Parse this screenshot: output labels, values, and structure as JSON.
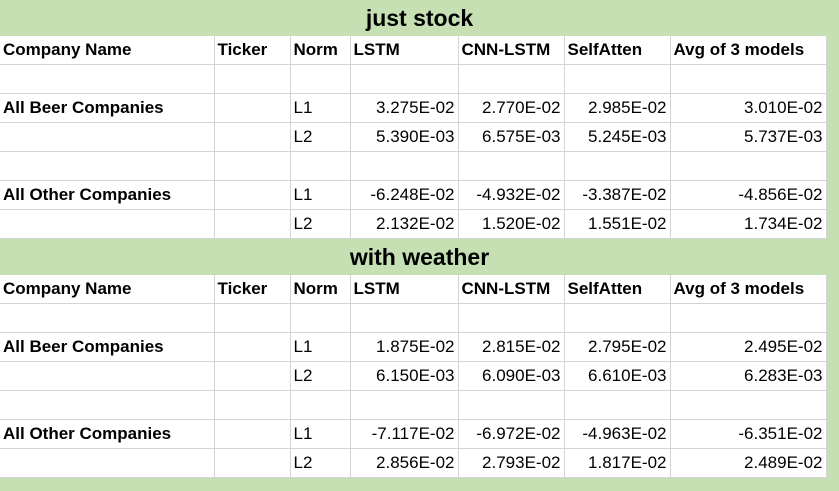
{
  "columns": [
    "Company Name",
    "Ticker",
    "Norm",
    "LSTM",
    "CNN-LSTM",
    "SelfAtten",
    "Avg of 3 models"
  ],
  "sections": [
    {
      "title": "just stock",
      "groups": [
        {
          "name": "All Beer Companies",
          "rows": [
            {
              "norm": "L1",
              "lstm": "3.275E-02",
              "cnn": "2.770E-02",
              "self": "2.985E-02",
              "avg": "3.010E-02"
            },
            {
              "norm": "L2",
              "lstm": "5.390E-03",
              "cnn": "6.575E-03",
              "self": "5.245E-03",
              "avg": "5.737E-03"
            }
          ]
        },
        {
          "name": "All Other Companies",
          "rows": [
            {
              "norm": "L1",
              "lstm": "-6.248E-02",
              "cnn": "-4.932E-02",
              "self": "-3.387E-02",
              "avg": "-4.856E-02"
            },
            {
              "norm": "L2",
              "lstm": "2.132E-02",
              "cnn": "1.520E-02",
              "self": "1.551E-02",
              "avg": "1.734E-02"
            }
          ]
        }
      ]
    },
    {
      "title": "with weather",
      "groups": [
        {
          "name": "All Beer Companies",
          "rows": [
            {
              "norm": "L1",
              "lstm": "1.875E-02",
              "cnn": "2.815E-02",
              "self": "2.795E-02",
              "avg": "2.495E-02"
            },
            {
              "norm": "L2",
              "lstm": "6.150E-03",
              "cnn": "6.090E-03",
              "self": "6.610E-03",
              "avg": "6.283E-03"
            }
          ]
        },
        {
          "name": "All Other Companies",
          "rows": [
            {
              "norm": "L1",
              "lstm": "-7.117E-02",
              "cnn": "-6.972E-02",
              "self": "-4.963E-02",
              "avg": "-6.351E-02"
            },
            {
              "norm": "L2",
              "lstm": "2.856E-02",
              "cnn": "2.793E-02",
              "self": "1.817E-02",
              "avg": "2.489E-02"
            }
          ]
        }
      ]
    }
  ]
}
